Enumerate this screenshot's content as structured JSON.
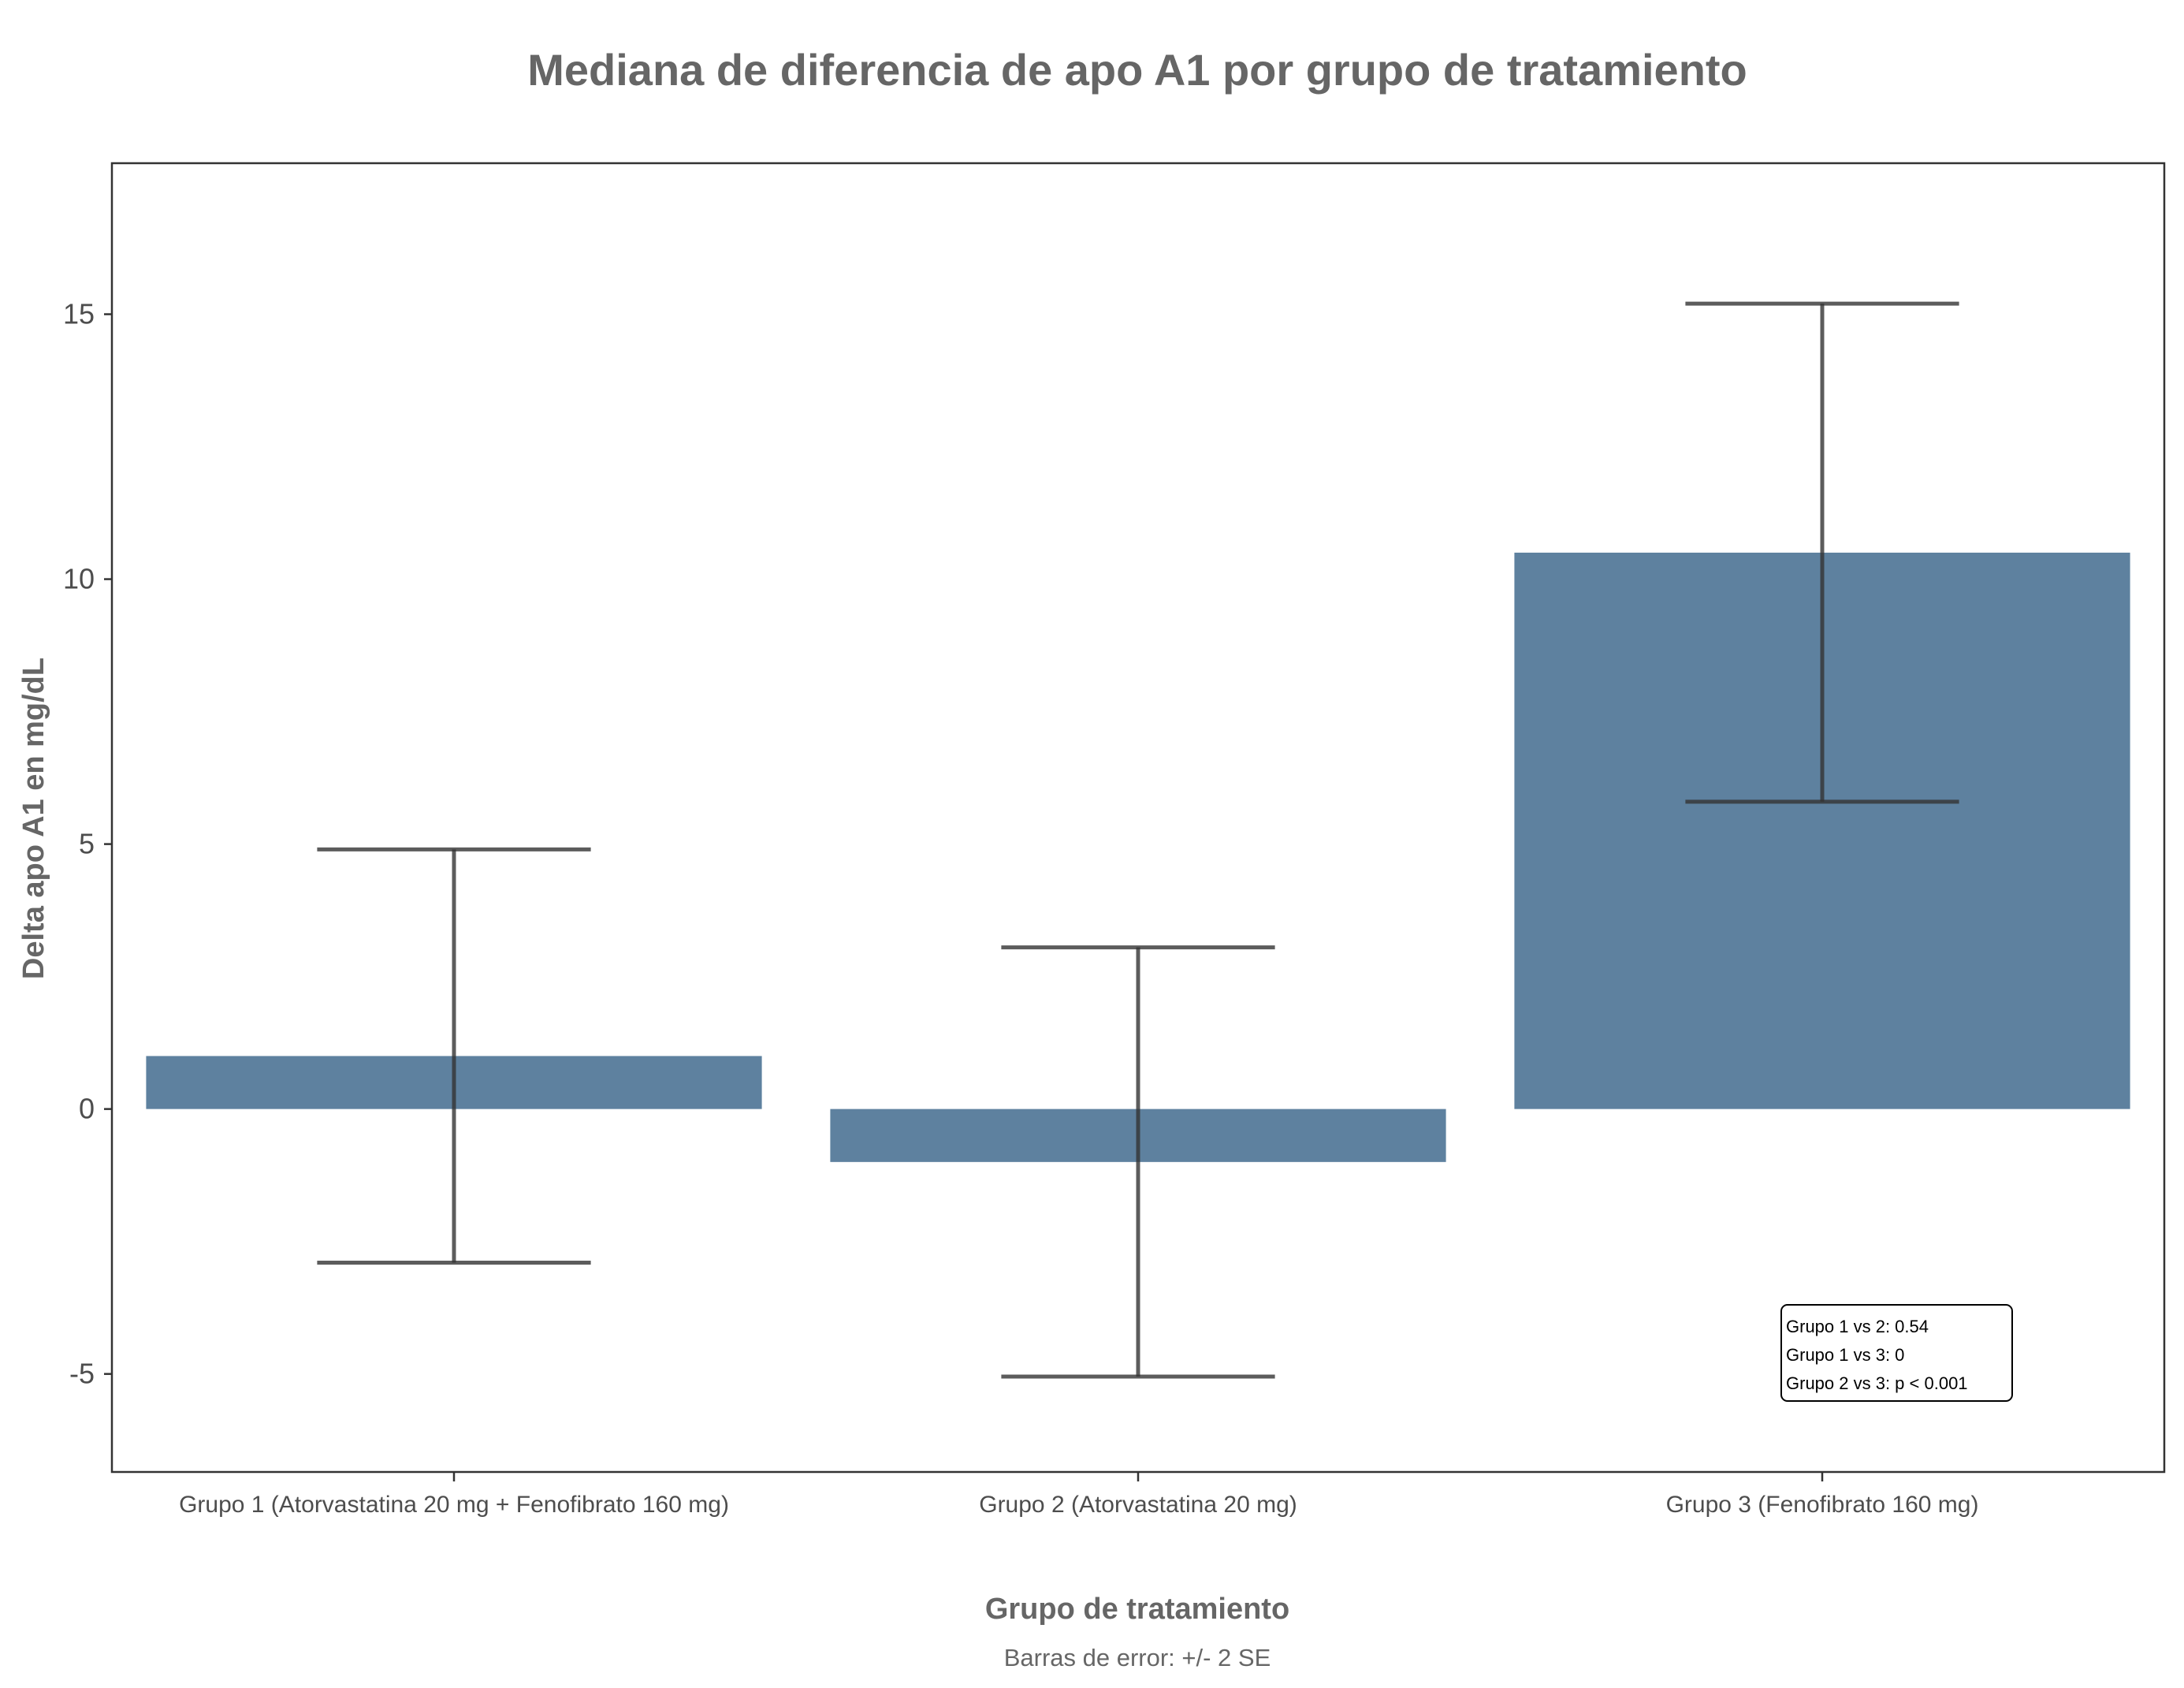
{
  "chart_data": {
    "type": "bar",
    "title": "Mediana de diferencia de apo A1 por grupo de tratamiento",
    "xlabel": "Grupo de tratamiento",
    "ylabel": "Delta apo A1 en mg/dL",
    "caption": "Barras de error: +/- 2 SE",
    "categories": [
      "Grupo 1 (Atorvastatina 20 mg + Fenofibrato 160 mg)",
      "Grupo 2 (Atorvastatina 20 mg)",
      "Grupo 3 (Fenofibrato 160 mg)"
    ],
    "values": [
      1.0,
      -1.0,
      10.5
    ],
    "error_lower": [
      -2.9,
      -5.05,
      5.8
    ],
    "error_upper": [
      4.9,
      3.05,
      15.2
    ],
    "ylim": [
      -6.85,
      17.85
    ],
    "yticks": [
      -5,
      0,
      5,
      10,
      15
    ],
    "ytick_labels": [
      "-5",
      "0",
      "5",
      "10",
      "15"
    ],
    "grid": false,
    "colors": {
      "bar": "#5e819f",
      "errorbar": "#333333",
      "text": "#666666",
      "axis": "#333333"
    },
    "annotation": {
      "lines": [
        "Grupo 1 vs 2: 0.54",
        "Grupo 1 vs 3: 0",
        "Grupo 2 vs 3: p < 0.001"
      ]
    }
  }
}
